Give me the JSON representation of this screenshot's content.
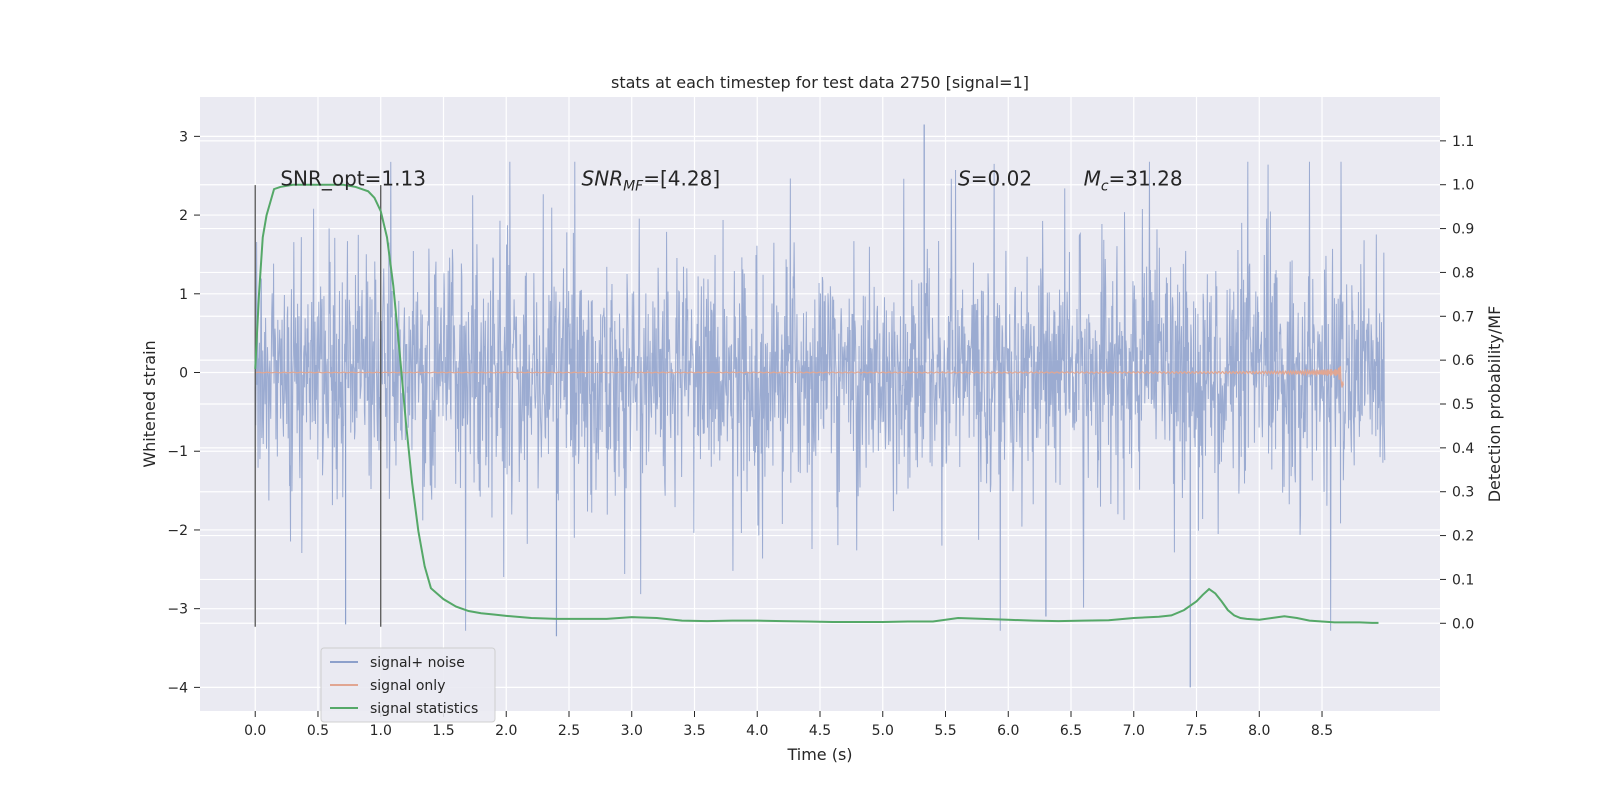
{
  "chart_data": {
    "type": "line",
    "title": "stats at each timestep for test data 2750 [signal=1]",
    "xlabel": "Time (s)",
    "ylabel_left": "Whitened strain",
    "ylabel_right": "Detection probability/MF",
    "xlim": [
      -0.44,
      9.44
    ],
    "ylim_left": [
      -4.3,
      3.5
    ],
    "ylim_right": [
      -0.2,
      1.2
    ],
    "x_ticks": [
      "0.0",
      "0.5",
      "1.0",
      "1.5",
      "2.0",
      "2.5",
      "3.0",
      "3.5",
      "4.0",
      "4.5",
      "5.0",
      "5.5",
      "6.0",
      "6.5",
      "7.0",
      "7.5",
      "8.0",
      "8.5"
    ],
    "x_tick_values": [
      0.0,
      0.5,
      1.0,
      1.5,
      2.0,
      2.5,
      3.0,
      3.5,
      4.0,
      4.5,
      5.0,
      5.5,
      6.0,
      6.5,
      7.0,
      7.5,
      8.0,
      8.5
    ],
    "y_ticks_left": [
      "−4",
      "−3",
      "−2",
      "−1",
      "0",
      "1",
      "2",
      "3"
    ],
    "y_tick_values_left": [
      -4,
      -3,
      -2,
      -1,
      0,
      1,
      2,
      3
    ],
    "y_ticks_right": [
      "0.0",
      "0.1",
      "0.2",
      "0.3",
      "0.4",
      "0.5",
      "0.6",
      "0.7",
      "0.8",
      "0.9",
      "1.0",
      "1.1"
    ],
    "y_tick_values_right": [
      0.0,
      0.1,
      0.2,
      0.3,
      0.4,
      0.5,
      0.6,
      0.7,
      0.8,
      0.9,
      1.0,
      1.1
    ],
    "grid": true,
    "legend_position": "bottom-left",
    "annotations": [
      {
        "text": "SNR_opt=1.13",
        "x": 0.2,
        "y_right": 1.0
      },
      {
        "text": "SNR",
        "sub": "MF",
        "rest": "=[4.28]",
        "italic": true,
        "x": 2.6,
        "y_right": 1.0
      },
      {
        "text": "S",
        "rest": "=0.02",
        "italic": true,
        "x": 5.6,
        "y_right": 1.0
      },
      {
        "text": "M",
        "sub": "c",
        "rest": "=31.28",
        "italic": true,
        "x": 6.6,
        "y_right": 1.0
      }
    ],
    "vlines": [
      0.0,
      1.0
    ],
    "vline_range_left": [
      -3.23,
      2.38
    ],
    "series": [
      {
        "name": "signal+ noise",
        "color": "#8da0cb",
        "axis": "left",
        "noise": {
          "t_start": 0.0,
          "t_end": 9.0,
          "std": 0.7,
          "max_peak": 3.15,
          "min_peak": -4.0
        }
      },
      {
        "name": "signal only",
        "color": "#e1a692",
        "axis": "left",
        "chirp": {
          "t_start": 0.0,
          "t_end": 8.67,
          "peak_amp": 0.23,
          "peak_time": 8.67
        }
      },
      {
        "name": "signal statistics",
        "color": "#55a868",
        "axis": "right",
        "x": [
          0.0,
          0.03,
          0.06,
          0.09,
          0.12,
          0.15,
          0.2,
          0.3,
          0.4,
          0.5,
          0.6,
          0.7,
          0.8,
          0.9,
          0.95,
          1.0,
          1.05,
          1.1,
          1.15,
          1.2,
          1.25,
          1.3,
          1.35,
          1.4,
          1.5,
          1.6,
          1.7,
          1.8,
          1.9,
          2.0,
          2.2,
          2.4,
          2.6,
          2.8,
          3.0,
          3.2,
          3.4,
          3.6,
          3.8,
          4.0,
          4.2,
          4.4,
          4.6,
          4.8,
          5.0,
          5.2,
          5.4,
          5.6,
          5.8,
          6.0,
          6.2,
          6.4,
          6.6,
          6.8,
          7.0,
          7.2,
          7.3,
          7.4,
          7.5,
          7.55,
          7.6,
          7.65,
          7.7,
          7.75,
          7.8,
          7.85,
          7.9,
          8.0,
          8.1,
          8.2,
          8.3,
          8.4,
          8.5,
          8.6,
          8.7,
          8.8,
          8.9,
          8.95
        ],
        "values": [
          0.58,
          0.75,
          0.88,
          0.93,
          0.96,
          0.99,
          0.995,
          1.0,
          1.0,
          1.0,
          1.0,
          1.0,
          0.995,
          0.985,
          0.97,
          0.94,
          0.88,
          0.77,
          0.62,
          0.46,
          0.32,
          0.21,
          0.13,
          0.08,
          0.055,
          0.038,
          0.028,
          0.023,
          0.02,
          0.017,
          0.012,
          0.01,
          0.01,
          0.01,
          0.014,
          0.012,
          0.006,
          0.005,
          0.006,
          0.006,
          0.005,
          0.004,
          0.003,
          0.003,
          0.003,
          0.004,
          0.004,
          0.012,
          0.01,
          0.008,
          0.006,
          0.005,
          0.006,
          0.007,
          0.012,
          0.015,
          0.018,
          0.03,
          0.05,
          0.065,
          0.078,
          0.068,
          0.05,
          0.03,
          0.018,
          0.012,
          0.01,
          0.008,
          0.012,
          0.016,
          0.012,
          0.006,
          0.004,
          0.002,
          0.002,
          0.002,
          0.001,
          0.001
        ]
      }
    ]
  },
  "legend": {
    "items": [
      {
        "label": "signal+ noise",
        "color": "#8da0cb"
      },
      {
        "label": "signal only",
        "color": "#e1a692"
      },
      {
        "label": "signal statistics",
        "color": "#55a868"
      }
    ]
  }
}
